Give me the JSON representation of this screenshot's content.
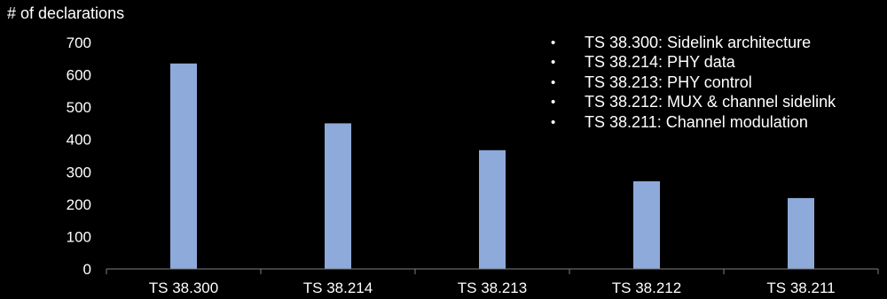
{
  "colors": {
    "background": "#000000",
    "bar": "#8eaadb",
    "text": "#ffffff",
    "axis": "#7f7f7f"
  },
  "legend": {
    "bullet": "•",
    "items": [
      "TS 38.300: Sidelink architecture",
      "TS 38.214: PHY data",
      "TS 38.213: PHY control",
      "TS 38.212: MUX & channel sidelink",
      "TS 38.211: Channel modulation"
    ]
  },
  "chart_data": {
    "type": "bar",
    "title": "",
    "xlabel": "",
    "ylabel": "# of declarations",
    "categories": [
      "TS 38.300",
      "TS 38.214",
      "TS 38.213",
      "TS 38.212",
      "TS 38.211"
    ],
    "values": [
      635,
      450,
      367,
      271,
      219
    ],
    "ylim": [
      0,
      700
    ],
    "yticks": [
      0,
      100,
      200,
      300,
      400,
      500,
      600,
      700
    ],
    "grid": false,
    "legend_position": "top-right"
  }
}
